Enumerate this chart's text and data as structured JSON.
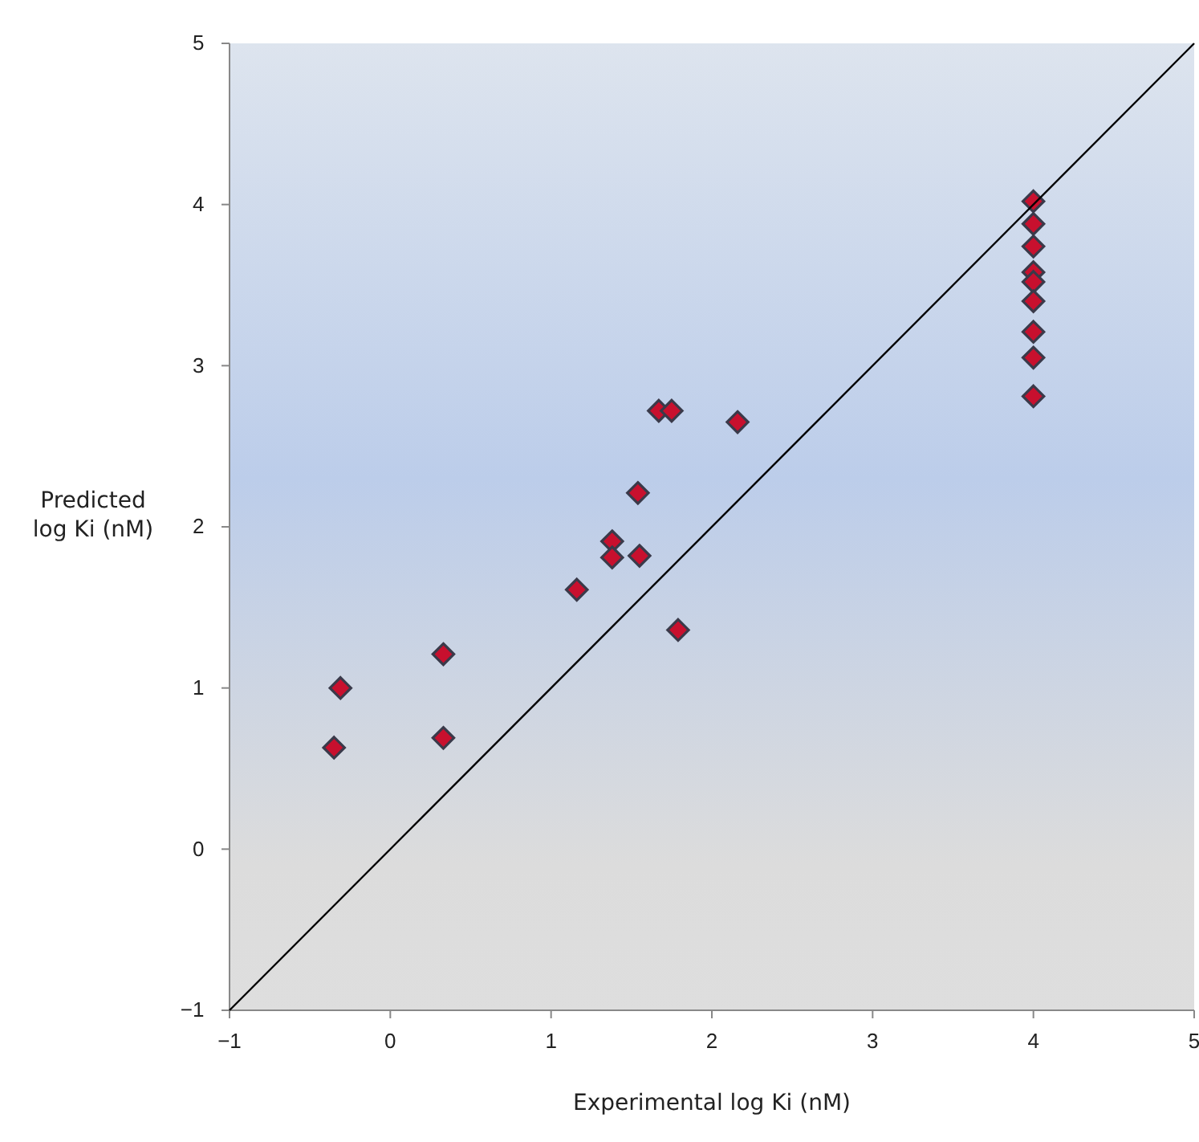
{
  "chart_data": {
    "type": "scatter",
    "xlabel": "Experimental log Ki (nM)",
    "ylabel": "Predicted log Ki (nM)",
    "xlim": [
      -1,
      5
    ],
    "ylim": [
      -1,
      5
    ],
    "xticks": [
      -1,
      0,
      1,
      2,
      3,
      4,
      5
    ],
    "yticks": [
      -1,
      0,
      1,
      2,
      3,
      4,
      5
    ],
    "grid": false,
    "marker": "diamond",
    "series": [
      {
        "color": "#c8102e",
        "x": [
          -0.35,
          -0.31,
          0.33,
          0.33,
          1.16,
          1.38,
          1.38,
          1.55,
          1.54,
          1.79,
          1.67,
          1.75,
          2.16,
          4,
          4,
          4,
          4,
          4,
          4,
          4,
          4,
          4
        ],
        "values": [
          0.63,
          1.0,
          1.21,
          0.69,
          1.61,
          1.91,
          1.81,
          1.82,
          2.21,
          1.36,
          2.72,
          2.72,
          2.65,
          4.02,
          3.88,
          3.74,
          3.58,
          3.52,
          3.4,
          3.21,
          3.05,
          2.81
        ]
      },
      {
        "type": "line",
        "color": "#000000",
        "x": [
          -1,
          5
        ],
        "values": [
          -1,
          5
        ],
        "marker": "none"
      }
    ]
  }
}
